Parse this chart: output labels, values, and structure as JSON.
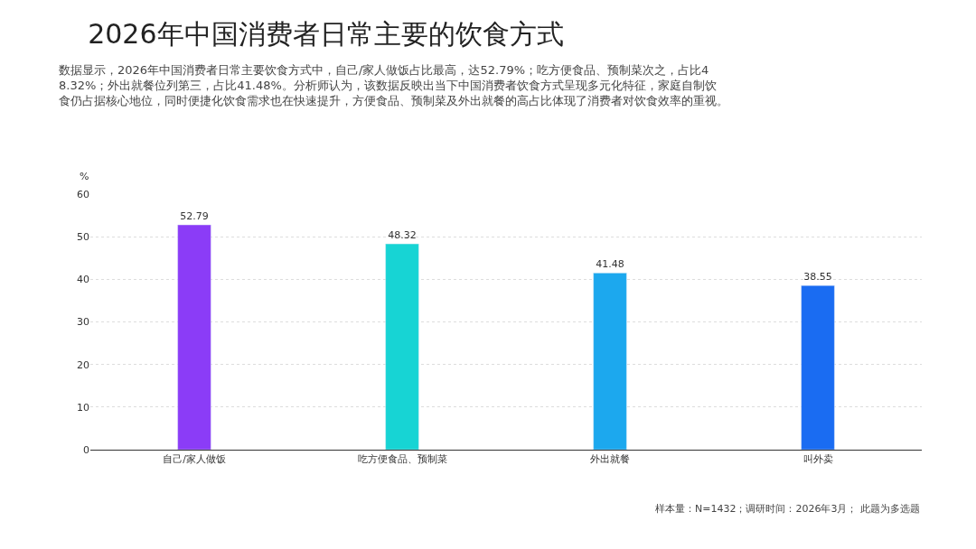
{
  "chart_data": {
    "type": "bar",
    "title": "2026年中国消费者日常主要的饮食方式",
    "subtitle": "数据显示，2026年中国消费者日常主要饮食方式中，自己/家人做饭占比最高，达52.79%；吃方便食品、预制菜次之，占比48.32%；外出就餐位列第三，占比41.48%。分析师认为，该数据反映出当下中国消费者饮食方式呈现多元化特征，家庭自制饮食仍占据核心地位，同时便捷化饮食需求也在快速提升，方便食品、预制菜及外出就餐的高占比体现了消费者对饮食效率的重视。",
    "ylabel": "%",
    "categories": [
      "自己/家人做饭",
      "吃方便食品、预制菜",
      "外出就餐",
      "叫外卖"
    ],
    "values": [
      52.79,
      48.32,
      41.48,
      38.55
    ],
    "colors": [
      "#8b3cf7",
      "#17d4d4",
      "#1ca8ee",
      "#1a6cf2"
    ],
    "ylim": [
      0,
      60
    ],
    "yticks": [
      0,
      10,
      20,
      30,
      40,
      50,
      60
    ],
    "grid": "y",
    "data_labels": true,
    "annotations": [
      "样本量：N=1432；调研时间：2026年3月； 此题为多选题"
    ]
  }
}
